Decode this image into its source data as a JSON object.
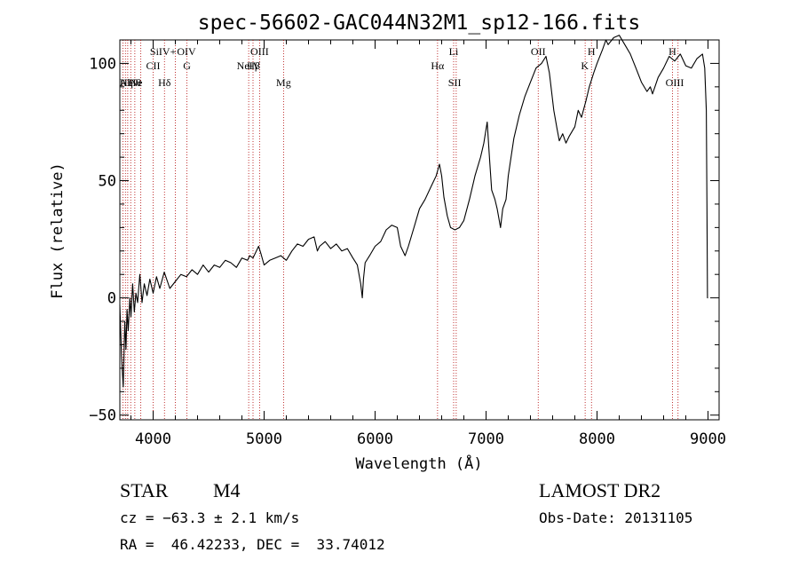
{
  "chart_data": {
    "type": "line",
    "title": "spec-56602-GAC044N32M1_sp12-166.fits",
    "xlabel": "Wavelength (Å)",
    "ylabel": "Flux (relative)",
    "xlim": [
      3700,
      9100
    ],
    "ylim": [
      -52,
      110
    ],
    "xticks": [
      4000,
      5000,
      6000,
      7000,
      8000,
      9000
    ],
    "yticks": [
      -50,
      0,
      50,
      100
    ],
    "grid": false,
    "series": [
      {
        "values": [
          [
            3700,
            -3
          ],
          [
            3715,
            -25
          ],
          [
            3730,
            -38
          ],
          [
            3745,
            -10
          ],
          [
            3755,
            -22
          ],
          [
            3765,
            -5
          ],
          [
            3775,
            -14
          ],
          [
            3790,
            0
          ],
          [
            3800,
            -8
          ],
          [
            3815,
            6
          ],
          [
            3830,
            -6
          ],
          [
            3845,
            2
          ],
          [
            3860,
            -2
          ],
          [
            3880,
            10
          ],
          [
            3900,
            -2
          ],
          [
            3920,
            6
          ],
          [
            3945,
            1
          ],
          [
            3970,
            8
          ],
          [
            4000,
            2
          ],
          [
            4030,
            9
          ],
          [
            4060,
            4
          ],
          [
            4100,
            11
          ],
          [
            4150,
            4
          ],
          [
            4200,
            7
          ],
          [
            4250,
            10
          ],
          [
            4300,
            9
          ],
          [
            4350,
            12
          ],
          [
            4400,
            10
          ],
          [
            4450,
            14
          ],
          [
            4500,
            11
          ],
          [
            4550,
            14
          ],
          [
            4600,
            13
          ],
          [
            4650,
            16
          ],
          [
            4700,
            15
          ],
          [
            4750,
            13
          ],
          [
            4800,
            17
          ],
          [
            4850,
            16
          ],
          [
            4870,
            18
          ],
          [
            4900,
            17
          ],
          [
            4950,
            22
          ],
          [
            4970,
            19
          ],
          [
            5000,
            14
          ],
          [
            5050,
            16
          ],
          [
            5100,
            17
          ],
          [
            5150,
            18
          ],
          [
            5200,
            16
          ],
          [
            5250,
            20
          ],
          [
            5300,
            23
          ],
          [
            5350,
            22
          ],
          [
            5400,
            25
          ],
          [
            5450,
            26
          ],
          [
            5480,
            20
          ],
          [
            5500,
            22
          ],
          [
            5550,
            24
          ],
          [
            5600,
            21
          ],
          [
            5650,
            23
          ],
          [
            5700,
            20
          ],
          [
            5750,
            21
          ],
          [
            5800,
            17
          ],
          [
            5840,
            14
          ],
          [
            5870,
            6
          ],
          [
            5885,
            0
          ],
          [
            5895,
            8
          ],
          [
            5910,
            15
          ],
          [
            5950,
            18
          ],
          [
            6000,
            22
          ],
          [
            6050,
            24
          ],
          [
            6100,
            29
          ],
          [
            6150,
            31
          ],
          [
            6200,
            30
          ],
          [
            6230,
            22
          ],
          [
            6270,
            18
          ],
          [
            6300,
            22
          ],
          [
            6350,
            30
          ],
          [
            6400,
            38
          ],
          [
            6450,
            42
          ],
          [
            6500,
            47
          ],
          [
            6550,
            52
          ],
          [
            6580,
            57
          ],
          [
            6600,
            52
          ],
          [
            6620,
            43
          ],
          [
            6650,
            35
          ],
          [
            6680,
            30
          ],
          [
            6720,
            29
          ],
          [
            6760,
            30
          ],
          [
            6800,
            33
          ],
          [
            6850,
            42
          ],
          [
            6900,
            52
          ],
          [
            6950,
            60
          ],
          [
            6980,
            66
          ],
          [
            7000,
            72
          ],
          [
            7010,
            75
          ],
          [
            7030,
            60
          ],
          [
            7050,
            46
          ],
          [
            7080,
            42
          ],
          [
            7100,
            38
          ],
          [
            7130,
            30
          ],
          [
            7150,
            38
          ],
          [
            7180,
            42
          ],
          [
            7200,
            52
          ],
          [
            7250,
            68
          ],
          [
            7300,
            78
          ],
          [
            7350,
            86
          ],
          [
            7400,
            92
          ],
          [
            7450,
            98
          ],
          [
            7500,
            100
          ],
          [
            7540,
            103
          ],
          [
            7570,
            96
          ],
          [
            7590,
            88
          ],
          [
            7610,
            80
          ],
          [
            7640,
            72
          ],
          [
            7660,
            67
          ],
          [
            7690,
            70
          ],
          [
            7720,
            66
          ],
          [
            7750,
            69
          ],
          [
            7800,
            73
          ],
          [
            7830,
            80
          ],
          [
            7860,
            77
          ],
          [
            7900,
            84
          ],
          [
            7930,
            90
          ],
          [
            7970,
            96
          ],
          [
            8000,
            100
          ],
          [
            8050,
            106
          ],
          [
            8080,
            110
          ],
          [
            8100,
            108
          ],
          [
            8150,
            111
          ],
          [
            8200,
            112
          ],
          [
            8250,
            108
          ],
          [
            8300,
            104
          ],
          [
            8350,
            98
          ],
          [
            8400,
            92
          ],
          [
            8450,
            88
          ],
          [
            8480,
            90
          ],
          [
            8500,
            87
          ],
          [
            8550,
            94
          ],
          [
            8600,
            98
          ],
          [
            8650,
            103
          ],
          [
            8700,
            101
          ],
          [
            8750,
            104
          ],
          [
            8800,
            99
          ],
          [
            8850,
            98
          ],
          [
            8900,
            102
          ],
          [
            8950,
            104
          ],
          [
            8970,
            98
          ],
          [
            8985,
            80
          ],
          [
            8990,
            40
          ],
          [
            8995,
            0
          ],
          [
            9000,
            0
          ]
        ]
      }
    ],
    "annotations": [
      {
        "label": "AlNe",
        "x": 3800,
        "row": "low"
      },
      {
        "label": "Hθ",
        "x": 3835,
        "row": "low"
      },
      {
        "label": "Hη",
        "x": 3760,
        "row": "low"
      },
      {
        "label": "SiIV+",
        "x": 4089,
        "row": "top"
      },
      {
        "label": "OIV",
        "x": 4300,
        "row": "top"
      },
      {
        "label": "CII",
        "x": 4000,
        "row": "mid"
      },
      {
        "label": "Hδ",
        "x": 4102,
        "row": "low"
      },
      {
        "label": "G",
        "x": 4305,
        "row": "mid"
      },
      {
        "label": "OIII",
        "x": 4959,
        "row": "top"
      },
      {
        "label": "NeIV",
        "x": 4860,
        "row": "mid"
      },
      {
        "label": "Hβ",
        "x": 4905,
        "row": "mid"
      },
      {
        "label": "Mg",
        "x": 5175,
        "row": "low"
      },
      {
        "label": "Li",
        "x": 6708,
        "row": "top"
      },
      {
        "label": "Hα",
        "x": 6563,
        "row": "mid"
      },
      {
        "label": "SII",
        "x": 6717,
        "row": "low"
      },
      {
        "label": "OII",
        "x": 7470,
        "row": "top"
      },
      {
        "label": "H",
        "x": 7950,
        "row": "top"
      },
      {
        "label": "K",
        "x": 7890,
        "row": "mid"
      },
      {
        "label": "H",
        "x": 8680,
        "row": "top"
      },
      {
        "label": "OIII",
        "x": 8700,
        "row": "low"
      }
    ],
    "line_markers": [
      3727,
      3750,
      3771,
      3798,
      3835,
      3889,
      4000,
      4102,
      4200,
      4305,
      4861,
      4900,
      4959,
      5175,
      6563,
      6708,
      6731,
      7470,
      7893,
      7950,
      8680,
      8730
    ]
  },
  "info": {
    "class_label": "STAR",
    "subclass": "M4",
    "cz": "cz = −63.3 ± 2.1 km/s",
    "coords": "RA =  46.42233, DEC =  33.74012",
    "survey": "LAMOST DR2",
    "obs_date": "Obs-Date: 20131105"
  }
}
